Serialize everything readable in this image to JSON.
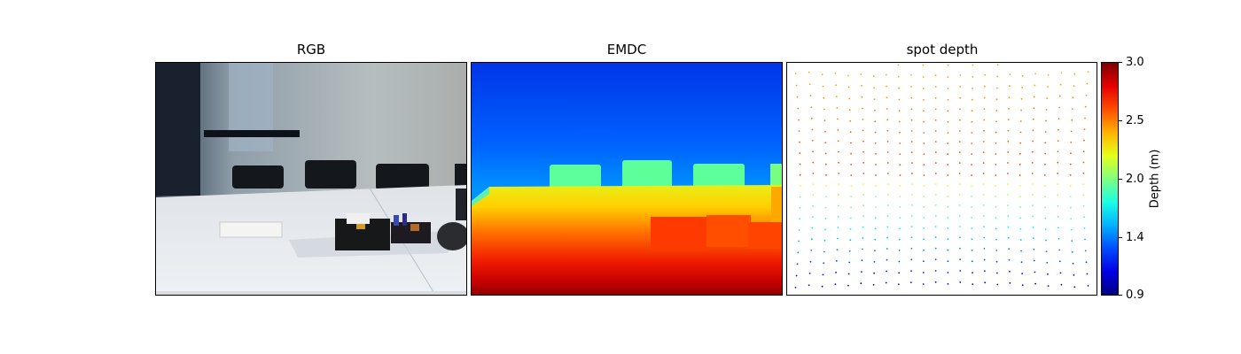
{
  "panels": {
    "rgb_title": "RGB",
    "emdc_title": "EMDC",
    "spot_title": "spot depth"
  },
  "colorbar": {
    "label": "Depth (m)",
    "ticks": [
      "3.0",
      "2.5",
      "2.0",
      "1.4",
      "0.9"
    ],
    "min": 0.9,
    "max": 3.0,
    "colormap": "jet_r"
  }
}
